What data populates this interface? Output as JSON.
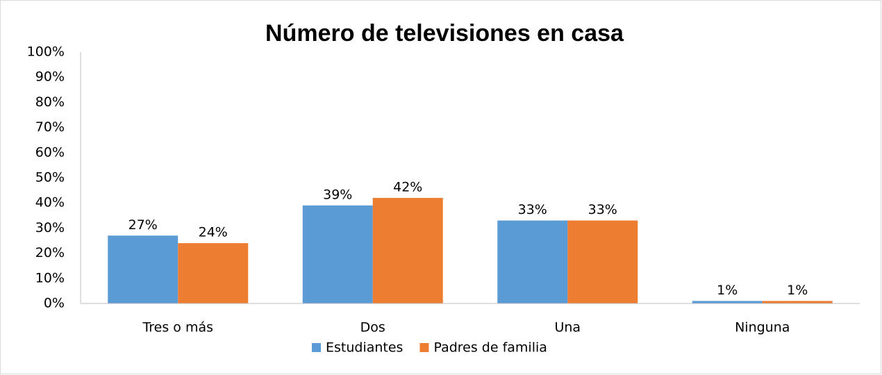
{
  "chart_data": {
    "type": "bar",
    "title": "Número de televisiones en casa",
    "categories": [
      "Tres o más",
      "Dos",
      "Una",
      "Ninguna"
    ],
    "series": [
      {
        "name": "Estudiantes",
        "color": "#5b9bd5",
        "values": [
          27,
          39,
          33,
          1
        ],
        "value_labels": [
          "27%",
          "39%",
          "33%",
          "1%"
        ]
      },
      {
        "name": "Padres de familia",
        "color": "#ed7d31",
        "values": [
          24,
          42,
          33,
          1
        ],
        "value_labels": [
          "24%",
          "42%",
          "33%",
          "1%"
        ]
      }
    ],
    "ylim": [
      0,
      100
    ],
    "yticks": [
      {
        "value": 0,
        "label": "0%"
      },
      {
        "value": 10,
        "label": "10%"
      },
      {
        "value": 20,
        "label": "20%"
      },
      {
        "value": 30,
        "label": "30%"
      },
      {
        "value": 40,
        "label": "40%"
      },
      {
        "value": 50,
        "label": "50%"
      },
      {
        "value": 60,
        "label": "60%"
      },
      {
        "value": 70,
        "label": "70%"
      },
      {
        "value": 80,
        "label": "80%"
      },
      {
        "value": 90,
        "label": "90%"
      },
      {
        "value": 100,
        "label": "100%"
      }
    ],
    "grid": false,
    "legend": "bottom"
  }
}
